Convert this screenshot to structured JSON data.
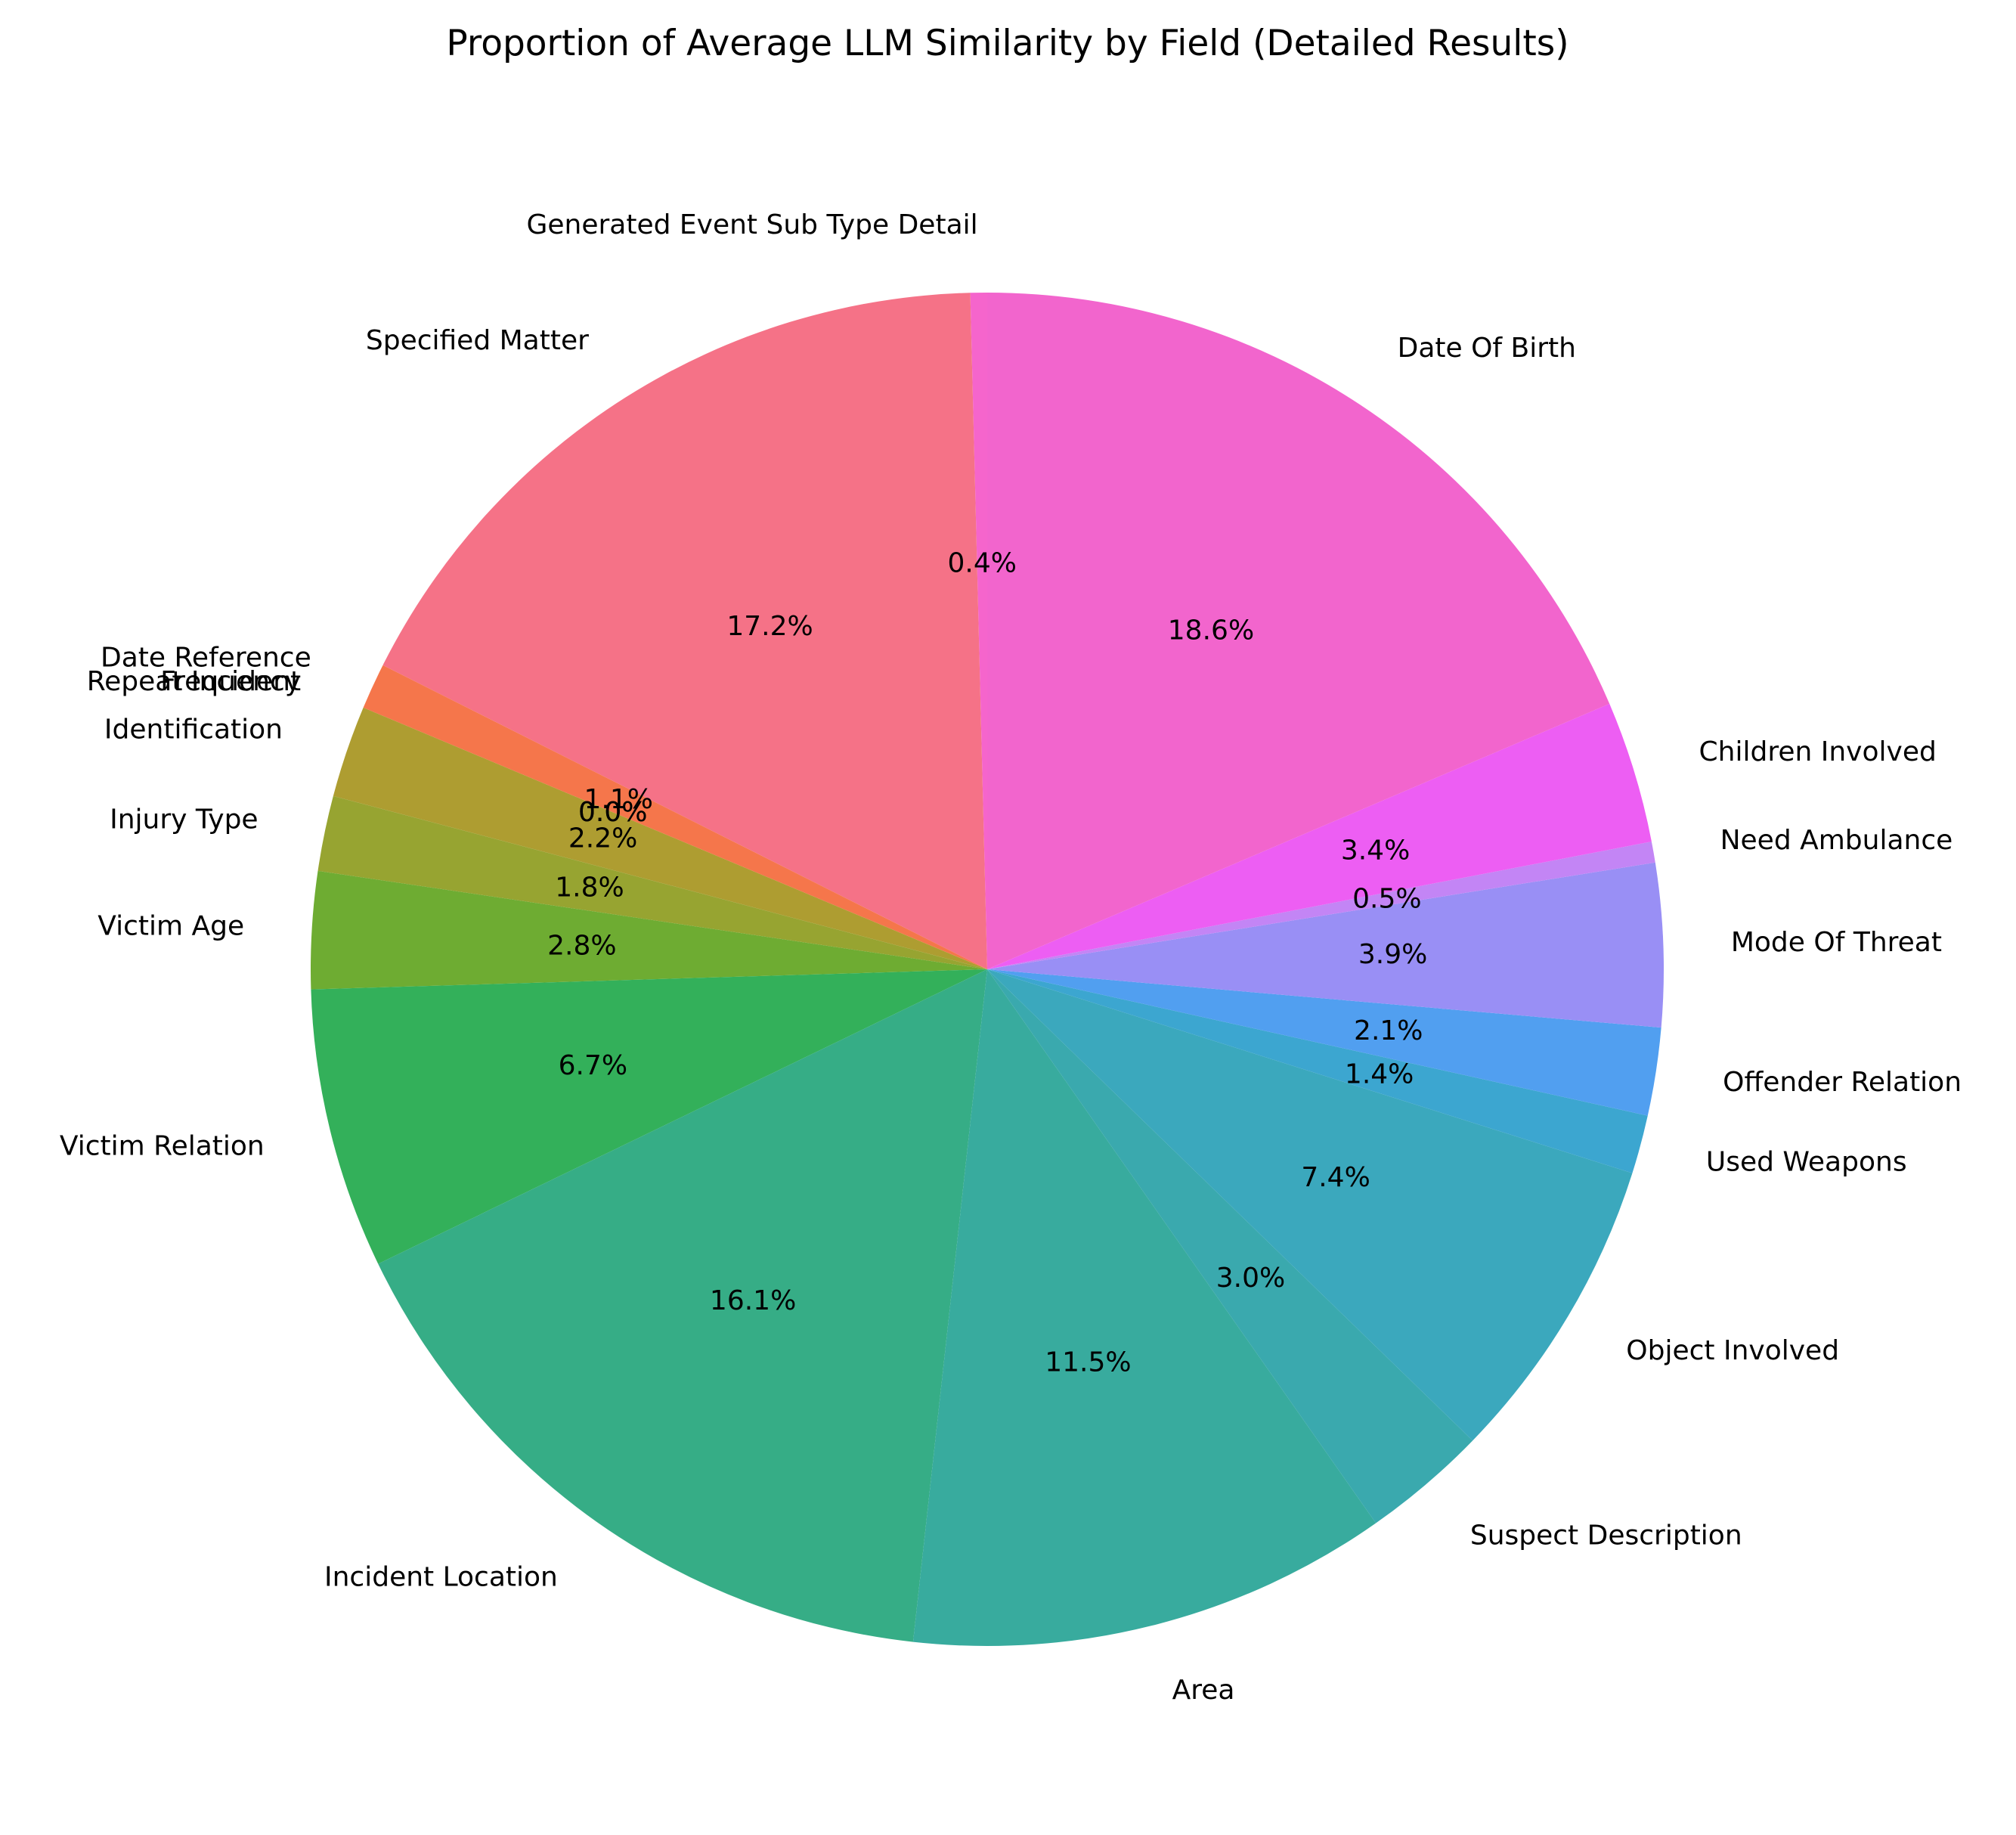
{
  "chart_data": {
    "type": "pie",
    "title": "Proportion of Average LLM Similarity by Field (Detailed Results)",
    "start_angle_deg": 90,
    "direction": "counterclockwise",
    "slices": [
      {
        "label": "Generated Event Sub Type Detail",
        "value": 0.4,
        "pct_label": "0.4%",
        "color": "#f565cc"
      },
      {
        "label": "Specified Matter",
        "value": 17.2,
        "pct_label": "17.2%",
        "color": "#f57287"
      },
      {
        "label": "Date Reference",
        "value": 1.1,
        "pct_label": "1.1%",
        "color": "#f5764b"
      },
      {
        "label": "Repeat Incident",
        "value": 0.0,
        "pct_label": "0.0%",
        "color": "#dc8932"
      },
      {
        "label": "Frequency",
        "value": 0.0,
        "pct_label": "0.0%",
        "color": "#c39532"
      },
      {
        "label": "Identification",
        "value": 2.2,
        "pct_label": "2.2%",
        "color": "#ae9d31"
      },
      {
        "label": "Injury Type",
        "value": 1.8,
        "pct_label": "1.8%",
        "color": "#97a431"
      },
      {
        "label": "Victim Age",
        "value": 2.8,
        "pct_label": "2.8%",
        "color": "#6eac32"
      },
      {
        "label": "Victim Relation",
        "value": 6.7,
        "pct_label": "6.7%",
        "color": "#33b05a"
      },
      {
        "label": "Incident Location",
        "value": 16.1,
        "pct_label": "16.1%",
        "color": "#36ad86"
      },
      {
        "label": "Area",
        "value": 11.5,
        "pct_label": "11.5%",
        "color": "#38ab9e"
      },
      {
        "label": "Suspect Description",
        "value": 3.0,
        "pct_label": "3.0%",
        "color": "#3aa9ae"
      },
      {
        "label": "Object Involved",
        "value": 7.4,
        "pct_label": "7.4%",
        "color": "#3ba8bd"
      },
      {
        "label": "Used Weapons",
        "value": 1.4,
        "pct_label": "1.4%",
        "color": "#3ca6d0"
      },
      {
        "label": "Offender Relation",
        "value": 2.1,
        "pct_label": "2.1%",
        "color": "#519ff0"
      },
      {
        "label": "Mode Of Threat",
        "value": 3.9,
        "pct_label": "3.9%",
        "color": "#998ff5"
      },
      {
        "label": "Need Ambulance",
        "value": 0.5,
        "pct_label": "0.5%",
        "color": "#c385f5"
      },
      {
        "label": "Children Involved",
        "value": 3.4,
        "pct_label": "3.4%",
        "color": "#ed5ef3"
      },
      {
        "label": "Date Of Birth",
        "value": 18.6,
        "pct_label": "18.6%",
        "color": "#f265cd"
      }
    ]
  }
}
